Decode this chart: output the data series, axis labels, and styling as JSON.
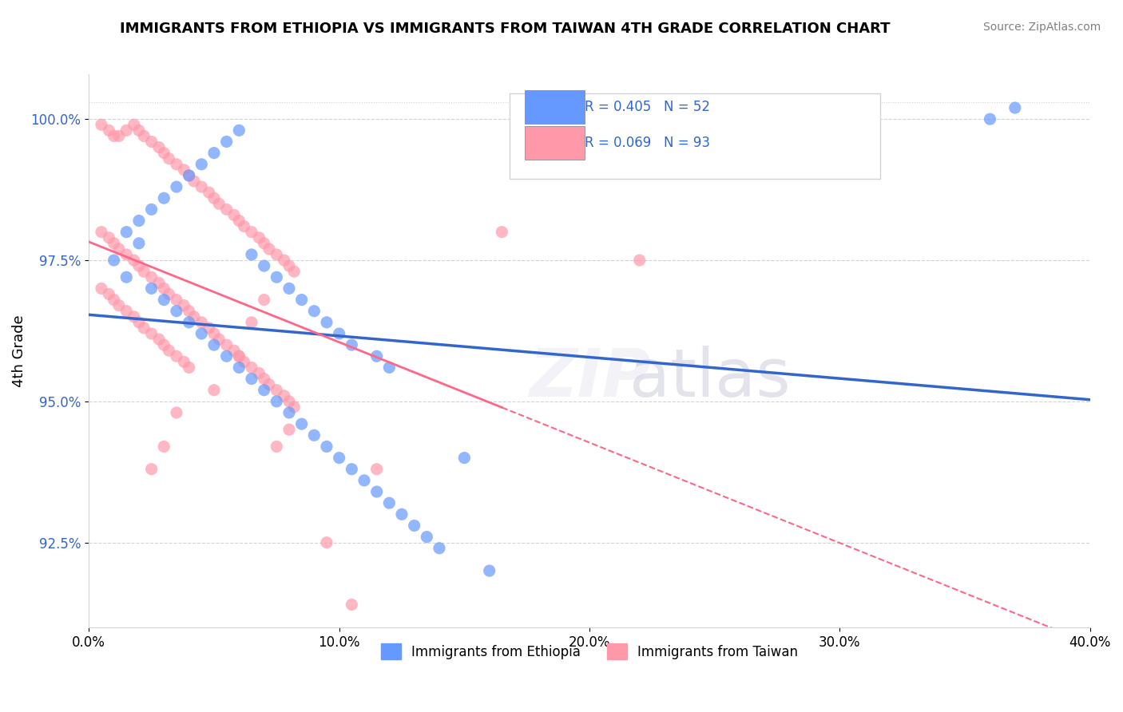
{
  "title": "IMMIGRANTS FROM ETHIOPIA VS IMMIGRANTS FROM TAIWAN 4TH GRADE CORRELATION CHART",
  "source": "Source: ZipAtlas.com",
  "xlabel_bottom": "",
  "ylabel": "4th Grade",
  "legend_blue_label": "R = 0.405   N = 52",
  "legend_pink_label": "R = 0.069   N = 93",
  "bottom_legend_blue": "Immigrants from Ethiopia",
  "bottom_legend_pink": "Immigrants from Taiwan",
  "xlim": [
    0.0,
    0.4
  ],
  "ylim": [
    0.91,
    1.008
  ],
  "yticks": [
    0.925,
    0.95,
    0.975,
    1.0
  ],
  "ytick_labels": [
    "92.5%",
    "95.0%",
    "97.5%",
    "100.0%"
  ],
  "xticks": [
    0.0,
    0.1,
    0.2,
    0.3,
    0.4
  ],
  "xtick_labels": [
    "0.0%",
    "10.0%",
    "20.0%",
    "30.0%",
    "40.0%"
  ],
  "blue_color": "#6699FF",
  "pink_color": "#FF99AA",
  "blue_line_color": "#3366CC",
  "pink_line_color": "#FF6688",
  "watermark": "ZIPatlas",
  "blue_scatter_x": [
    0.02,
    0.01,
    0.015,
    0.025,
    0.03,
    0.035,
    0.04,
    0.045,
    0.05,
    0.055,
    0.06,
    0.065,
    0.07,
    0.075,
    0.08,
    0.085,
    0.09,
    0.095,
    0.1,
    0.105,
    0.11,
    0.115,
    0.12,
    0.125,
    0.13,
    0.135,
    0.14,
    0.015,
    0.02,
    0.025,
    0.03,
    0.035,
    0.04,
    0.045,
    0.05,
    0.055,
    0.06,
    0.065,
    0.07,
    0.075,
    0.08,
    0.085,
    0.09,
    0.095,
    0.1,
    0.105,
    0.115,
    0.12,
    0.15,
    0.16,
    0.36,
    0.37
  ],
  "blue_scatter_y": [
    0.978,
    0.975,
    0.972,
    0.97,
    0.968,
    0.966,
    0.964,
    0.962,
    0.96,
    0.958,
    0.956,
    0.954,
    0.952,
    0.95,
    0.948,
    0.946,
    0.944,
    0.942,
    0.94,
    0.938,
    0.936,
    0.934,
    0.932,
    0.93,
    0.928,
    0.926,
    0.924,
    0.98,
    0.982,
    0.984,
    0.986,
    0.988,
    0.99,
    0.992,
    0.994,
    0.996,
    0.998,
    0.976,
    0.974,
    0.972,
    0.97,
    0.968,
    0.966,
    0.964,
    0.962,
    0.96,
    0.958,
    0.956,
    0.94,
    0.92,
    1.0,
    1.002
  ],
  "pink_scatter_x": [
    0.005,
    0.008,
    0.01,
    0.012,
    0.015,
    0.018,
    0.02,
    0.022,
    0.025,
    0.028,
    0.03,
    0.032,
    0.035,
    0.038,
    0.04,
    0.042,
    0.045,
    0.048,
    0.05,
    0.052,
    0.055,
    0.058,
    0.06,
    0.062,
    0.065,
    0.068,
    0.07,
    0.072,
    0.075,
    0.078,
    0.08,
    0.082,
    0.005,
    0.008,
    0.01,
    0.012,
    0.015,
    0.018,
    0.02,
    0.022,
    0.025,
    0.028,
    0.03,
    0.032,
    0.035,
    0.038,
    0.04,
    0.042,
    0.045,
    0.048,
    0.05,
    0.052,
    0.055,
    0.058,
    0.06,
    0.062,
    0.065,
    0.068,
    0.07,
    0.072,
    0.075,
    0.078,
    0.08,
    0.082,
    0.005,
    0.008,
    0.01,
    0.012,
    0.015,
    0.018,
    0.02,
    0.022,
    0.025,
    0.028,
    0.03,
    0.032,
    0.035,
    0.038,
    0.04,
    0.165,
    0.22,
    0.025,
    0.03,
    0.035,
    0.05,
    0.06,
    0.065,
    0.07,
    0.075,
    0.08,
    0.095,
    0.105,
    0.115
  ],
  "pink_scatter_y": [
    0.999,
    0.998,
    0.997,
    0.997,
    0.998,
    0.999,
    0.998,
    0.997,
    0.996,
    0.995,
    0.994,
    0.993,
    0.992,
    0.991,
    0.99,
    0.989,
    0.988,
    0.987,
    0.986,
    0.985,
    0.984,
    0.983,
    0.982,
    0.981,
    0.98,
    0.979,
    0.978,
    0.977,
    0.976,
    0.975,
    0.974,
    0.973,
    0.98,
    0.979,
    0.978,
    0.977,
    0.976,
    0.975,
    0.974,
    0.973,
    0.972,
    0.971,
    0.97,
    0.969,
    0.968,
    0.967,
    0.966,
    0.965,
    0.964,
    0.963,
    0.962,
    0.961,
    0.96,
    0.959,
    0.958,
    0.957,
    0.956,
    0.955,
    0.954,
    0.953,
    0.952,
    0.951,
    0.95,
    0.949,
    0.97,
    0.969,
    0.968,
    0.967,
    0.966,
    0.965,
    0.964,
    0.963,
    0.962,
    0.961,
    0.96,
    0.959,
    0.958,
    0.957,
    0.956,
    0.98,
    0.975,
    0.938,
    0.942,
    0.948,
    0.952,
    0.958,
    0.964,
    0.968,
    0.942,
    0.945,
    0.925,
    0.914,
    0.938
  ]
}
